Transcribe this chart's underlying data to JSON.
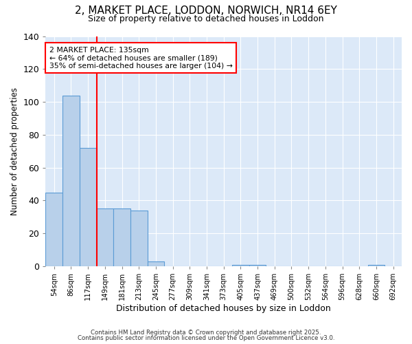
{
  "title1": "2, MARKET PLACE, LODDON, NORWICH, NR14 6EY",
  "title2": "Size of property relative to detached houses in Loddon",
  "xlabel": "Distribution of detached houses by size in Loddon",
  "ylabel": "Number of detached properties",
  "categories": [
    "54sqm",
    "86sqm",
    "117sqm",
    "149sqm",
    "181sqm",
    "213sqm",
    "245sqm",
    "277sqm",
    "309sqm",
    "341sqm",
    "373sqm",
    "405sqm",
    "437sqm",
    "469sqm",
    "500sqm",
    "532sqm",
    "564sqm",
    "596sqm",
    "628sqm",
    "660sqm",
    "692sqm"
  ],
  "values": [
    45,
    104,
    72,
    35,
    35,
    34,
    3,
    0,
    0,
    0,
    0,
    1,
    1,
    0,
    0,
    0,
    0,
    0,
    0,
    1,
    0
  ],
  "bar_color": "#b8d0ea",
  "bar_edge_color": "#5b9bd5",
  "red_line_x": 2.5,
  "ylim": [
    0,
    140
  ],
  "yticks": [
    0,
    20,
    40,
    60,
    80,
    100,
    120,
    140
  ],
  "annotation_text": "2 MARKET PLACE: 135sqm\n← 64% of detached houses are smaller (189)\n35% of semi-detached houses are larger (104) →",
  "footer1": "Contains HM Land Registry data © Crown copyright and database right 2025.",
  "footer2": "Contains public sector information licensed under the Open Government Licence v3.0.",
  "bg_color": "#dce9f8",
  "fig_bg_color": "#ffffff",
  "grid_color": "#ffffff"
}
